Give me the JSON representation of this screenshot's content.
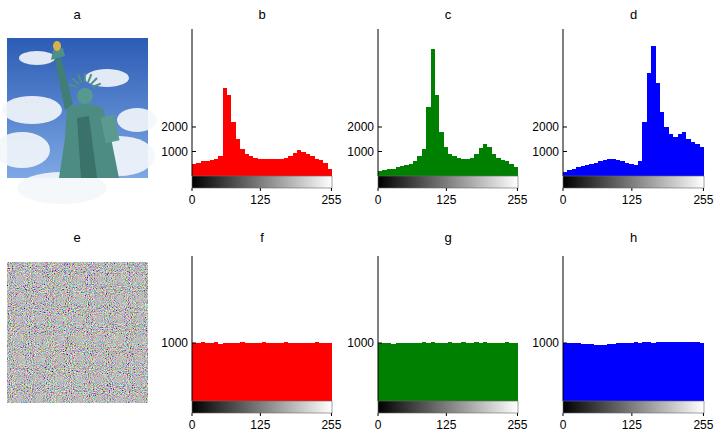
{
  "images": [
    {
      "title": "a"
    },
    {
      "title": "e"
    }
  ],
  "chart_data": [
    {
      "type": "histogram",
      "title": "b",
      "color": "#ff0000",
      "bins": [
        0,
        8,
        16,
        24,
        32,
        40,
        48,
        56,
        64,
        72,
        80,
        88,
        96,
        104,
        112,
        120,
        128,
        136,
        144,
        152,
        160,
        168,
        176,
        184,
        192,
        200,
        208,
        216,
        224,
        232,
        240,
        248,
        256
      ],
      "values": [
        500,
        550,
        600,
        600,
        650,
        700,
        800,
        3600,
        3300,
        2200,
        1500,
        1100,
        900,
        800,
        750,
        700,
        700,
        700,
        700,
        700,
        700,
        750,
        800,
        950,
        1050,
        1000,
        900,
        800,
        700,
        650,
        550,
        300
      ],
      "xlim": [
        0,
        256
      ],
      "xticks": [
        0,
        125,
        255
      ],
      "ylim": [
        0,
        6000
      ],
      "yticks": [
        1000,
        2000
      ]
    },
    {
      "type": "histogram",
      "title": "c",
      "color": "#008000",
      "bins": [
        0,
        8,
        16,
        24,
        32,
        40,
        48,
        56,
        64,
        72,
        80,
        88,
        96,
        104,
        112,
        120,
        128,
        136,
        144,
        152,
        160,
        168,
        176,
        184,
        192,
        200,
        208,
        216,
        224,
        232,
        240,
        248,
        256
      ],
      "values": [
        200,
        250,
        300,
        300,
        350,
        400,
        450,
        500,
        600,
        800,
        1100,
        2800,
        5200,
        3300,
        1800,
        1200,
        900,
        800,
        750,
        700,
        700,
        750,
        900,
        1150,
        1300,
        1200,
        900,
        750,
        650,
        600,
        500,
        350
      ],
      "xlim": [
        0,
        256
      ],
      "xticks": [
        0,
        125,
        255
      ],
      "ylim": [
        0,
        6000
      ],
      "yticks": [
        1000,
        2000
      ]
    },
    {
      "type": "histogram",
      "title": "d",
      "color": "#0000ff",
      "bins": [
        0,
        8,
        16,
        24,
        32,
        40,
        48,
        56,
        64,
        72,
        80,
        88,
        96,
        104,
        112,
        120,
        128,
        136,
        144,
        152,
        160,
        168,
        176,
        184,
        192,
        200,
        208,
        216,
        224,
        232,
        240,
        248,
        256
      ],
      "values": [
        150,
        250,
        300,
        350,
        400,
        450,
        500,
        550,
        600,
        650,
        700,
        700,
        650,
        600,
        550,
        500,
        450,
        600,
        2200,
        4200,
        5300,
        3800,
        2600,
        2000,
        1700,
        1600,
        1700,
        1800,
        1500,
        1400,
        1300,
        1200
      ],
      "xlim": [
        0,
        256
      ],
      "xticks": [
        0,
        125,
        255
      ],
      "ylim": [
        0,
        6000
      ],
      "yticks": [
        1000,
        2000
      ]
    },
    {
      "type": "histogram",
      "title": "f",
      "color": "#ff0000",
      "bins": [
        0,
        8,
        16,
        24,
        32,
        40,
        48,
        56,
        64,
        72,
        80,
        88,
        96,
        104,
        112,
        120,
        128,
        136,
        144,
        152,
        160,
        168,
        176,
        184,
        192,
        200,
        208,
        216,
        224,
        232,
        240,
        248,
        256
      ],
      "values": [
        1005,
        998,
        1010,
        995,
        1002,
        1012,
        990,
        1000,
        1008,
        996,
        1003,
        1015,
        994,
        1001,
        999,
        1006,
        1011,
        993,
        1000,
        1004,
        997,
        1009,
        1002,
        995,
        1007,
        1000,
        992,
        1003,
        1010,
        998,
        1001,
        996
      ],
      "xlim": [
        0,
        256
      ],
      "xticks": [
        0,
        125,
        255
      ],
      "ylim": [
        0,
        2500
      ],
      "yticks": [
        1000
      ]
    },
    {
      "type": "histogram",
      "title": "g",
      "color": "#008000",
      "bins": [
        0,
        8,
        16,
        24,
        32,
        40,
        48,
        56,
        64,
        72,
        80,
        88,
        96,
        104,
        112,
        120,
        128,
        136,
        144,
        152,
        160,
        168,
        176,
        184,
        192,
        200,
        208,
        216,
        224,
        232,
        240,
        248,
        256
      ],
      "values": [
        995,
        1000,
        1003,
        990,
        998,
        1006,
        1001,
        994,
        1008,
        1000,
        1010,
        1004,
        1012,
        999,
        1005,
        1002,
        1015,
        1000,
        1007,
        1011,
        996,
        1004,
        1009,
        1000,
        1013,
        1003,
        1006,
        998,
        1002,
        1010,
        1000,
        1004
      ],
      "xlim": [
        0,
        256
      ],
      "xticks": [
        0,
        125,
        255
      ],
      "ylim": [
        0,
        2500
      ],
      "yticks": [
        1000
      ]
    },
    {
      "type": "histogram",
      "title": "h",
      "color": "#0000ff",
      "bins": [
        0,
        8,
        16,
        24,
        32,
        40,
        48,
        56,
        64,
        72,
        80,
        88,
        96,
        104,
        112,
        120,
        128,
        136,
        144,
        152,
        160,
        168,
        176,
        184,
        192,
        200,
        208,
        216,
        224,
        232,
        240,
        248,
        256
      ],
      "values": [
        1005,
        1002,
        1000,
        998,
        990,
        985,
        975,
        970,
        968,
        972,
        980,
        988,
        995,
        1000,
        1004,
        1008,
        1010,
        1006,
        1012,
        1009,
        1004,
        1010,
        1015,
        1012,
        1018,
        1014,
        1010,
        1016,
        1020,
        1012,
        1015,
        1008
      ],
      "xlim": [
        0,
        256
      ],
      "xticks": [
        0,
        125,
        255
      ],
      "ylim": [
        0,
        2500
      ],
      "yticks": [
        1000
      ]
    }
  ]
}
